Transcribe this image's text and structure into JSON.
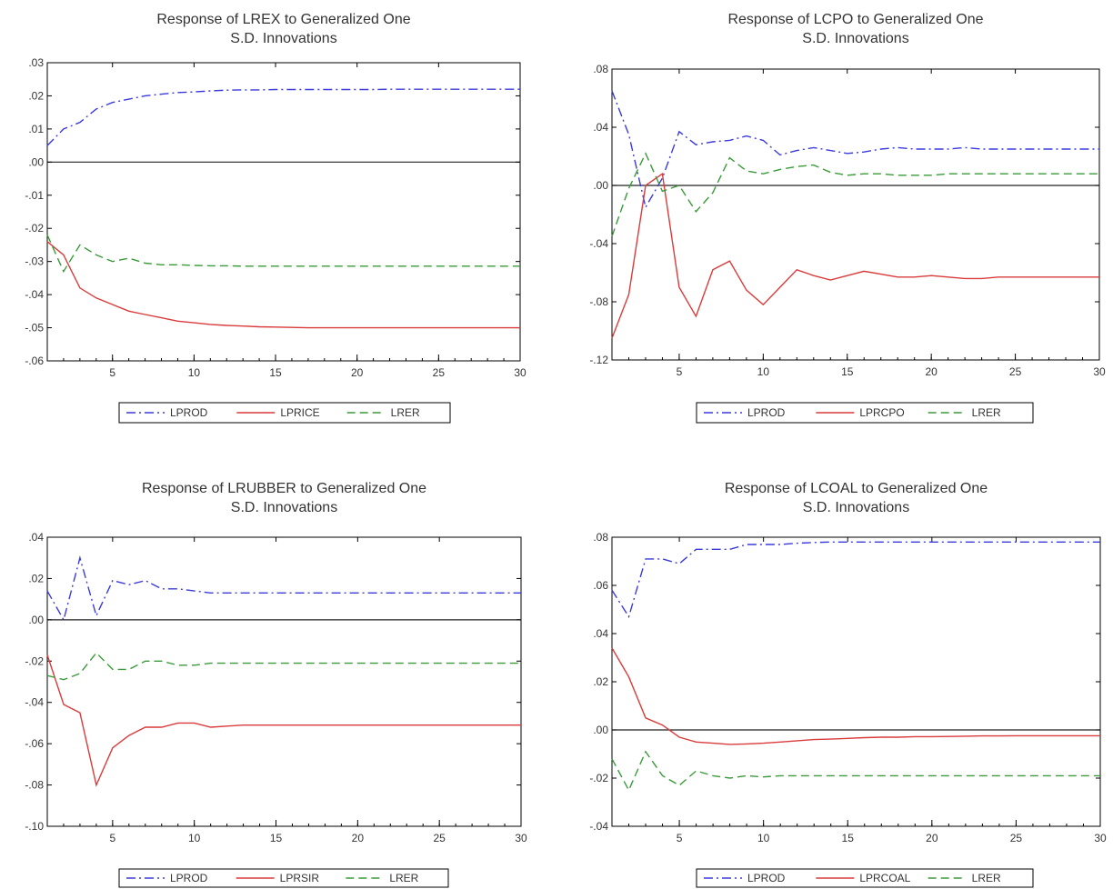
{
  "chart_data": [
    {
      "type": "line",
      "title": "Response of LREX to Generalized One",
      "subtitle": "S.D. Innovations",
      "xlabel": "",
      "ylabel": "",
      "xlim": [
        1,
        30
      ],
      "ylim": [
        -0.06,
        0.03
      ],
      "x_ticks": [
        5,
        10,
        15,
        20,
        25,
        30
      ],
      "y_ticks": [
        ".03",
        ".02",
        ".01",
        ".00",
        "-.01",
        "-.02",
        "-.03",
        "-.04",
        "-.05",
        "-.06"
      ],
      "x": [
        1,
        2,
        3,
        4,
        5,
        6,
        7,
        8,
        9,
        10,
        11,
        12,
        13,
        14,
        15,
        16,
        17,
        18,
        19,
        20,
        21,
        22,
        23,
        24,
        25,
        26,
        27,
        28,
        29,
        30
      ],
      "legend_position": "bottom-center",
      "grid": false,
      "zero_line": true,
      "series": [
        {
          "name": "LPROD",
          "style": "dashdot",
          "color": "#3b3bd9",
          "values": [
            0.005,
            0.01,
            0.012,
            0.016,
            0.018,
            0.019,
            0.02,
            0.0205,
            0.021,
            0.0212,
            0.0215,
            0.0217,
            0.0218,
            0.0218,
            0.0219,
            0.0219,
            0.0219,
            0.0219,
            0.0219,
            0.0219,
            0.0219,
            0.022,
            0.022,
            0.022,
            0.022,
            0.022,
            0.022,
            0.022,
            0.022,
            0.022
          ]
        },
        {
          "name": "LPRICE",
          "style": "solid",
          "color": "#d93b3b",
          "values": [
            -0.024,
            -0.028,
            -0.038,
            -0.041,
            -0.043,
            -0.045,
            -0.046,
            -0.047,
            -0.048,
            -0.0485,
            -0.049,
            -0.0493,
            -0.0495,
            -0.0497,
            -0.0498,
            -0.0499,
            -0.05,
            -0.05,
            -0.05,
            -0.05,
            -0.05,
            -0.05,
            -0.05,
            -0.05,
            -0.05,
            -0.05,
            -0.05,
            -0.05,
            -0.05,
            -0.05
          ]
        },
        {
          "name": "LRER",
          "style": "dashed",
          "color": "#3a9a3a",
          "values": [
            -0.022,
            -0.033,
            -0.025,
            -0.028,
            -0.03,
            -0.029,
            -0.0305,
            -0.031,
            -0.031,
            -0.0312,
            -0.0313,
            -0.0313,
            -0.0314,
            -0.0314,
            -0.0314,
            -0.0314,
            -0.0314,
            -0.0314,
            -0.0314,
            -0.0314,
            -0.0314,
            -0.0314,
            -0.0314,
            -0.0314,
            -0.0314,
            -0.0314,
            -0.0314,
            -0.0314,
            -0.0314,
            -0.0314
          ]
        }
      ]
    },
    {
      "type": "line",
      "title": "Response of LCPO to Generalized One",
      "subtitle": "S.D. Innovations",
      "xlabel": "",
      "ylabel": "",
      "xlim": [
        1,
        30
      ],
      "ylim": [
        -0.12,
        0.08
      ],
      "x_ticks": [
        5,
        10,
        15,
        20,
        25,
        30
      ],
      "y_ticks": [
        ".08",
        ".04",
        ".00",
        "-.04",
        "-.08",
        "-.12"
      ],
      "x": [
        1,
        2,
        3,
        4,
        5,
        6,
        7,
        8,
        9,
        10,
        11,
        12,
        13,
        14,
        15,
        16,
        17,
        18,
        19,
        20,
        21,
        22,
        23,
        24,
        25,
        26,
        27,
        28,
        29,
        30
      ],
      "legend_position": "bottom-center",
      "grid": false,
      "zero_line": true,
      "series": [
        {
          "name": "LPROD",
          "style": "dashdot",
          "color": "#3b3bd9",
          "values": [
            0.065,
            0.035,
            -0.015,
            0.005,
            0.037,
            0.028,
            0.03,
            0.031,
            0.034,
            0.031,
            0.021,
            0.024,
            0.026,
            0.024,
            0.022,
            0.023,
            0.025,
            0.026,
            0.025,
            0.025,
            0.025,
            0.026,
            0.025,
            0.025,
            0.025,
            0.025,
            0.025,
            0.025,
            0.025,
            0.025
          ]
        },
        {
          "name": "LPRCPO",
          "style": "solid",
          "color": "#d93b3b",
          "values": [
            -0.105,
            -0.075,
            0.0,
            0.008,
            -0.07,
            -0.09,
            -0.058,
            -0.052,
            -0.072,
            -0.082,
            -0.07,
            -0.058,
            -0.062,
            -0.065,
            -0.062,
            -0.059,
            -0.061,
            -0.063,
            -0.063,
            -0.062,
            -0.063,
            -0.064,
            -0.064,
            -0.063,
            -0.063,
            -0.063,
            -0.063,
            -0.063,
            -0.063,
            -0.063
          ]
        },
        {
          "name": "LRER",
          "style": "dashed",
          "color": "#3a9a3a",
          "values": [
            -0.035,
            -0.002,
            0.022,
            -0.004,
            0.0,
            -0.018,
            -0.005,
            0.019,
            0.01,
            0.008,
            0.011,
            0.013,
            0.014,
            0.009,
            0.007,
            0.008,
            0.008,
            0.007,
            0.007,
            0.007,
            0.008,
            0.008,
            0.008,
            0.008,
            0.008,
            0.008,
            0.008,
            0.008,
            0.008,
            0.008
          ]
        }
      ]
    },
    {
      "type": "line",
      "title": "Response of LRUBBER to Generalized One",
      "subtitle": "S.D. Innovations",
      "xlabel": "",
      "ylabel": "",
      "xlim": [
        1,
        30
      ],
      "ylim": [
        -0.1,
        0.04
      ],
      "x_ticks": [
        5,
        10,
        15,
        20,
        25,
        30
      ],
      "y_ticks": [
        ".04",
        ".02",
        ".00",
        "-.02",
        "-.04",
        "-.06",
        "-.08",
        "-.10"
      ],
      "x": [
        1,
        2,
        3,
        4,
        5,
        6,
        7,
        8,
        9,
        10,
        11,
        12,
        13,
        14,
        15,
        16,
        17,
        18,
        19,
        20,
        21,
        22,
        23,
        24,
        25,
        26,
        27,
        28,
        29,
        30
      ],
      "legend_position": "bottom-center",
      "grid": false,
      "zero_line": true,
      "series": [
        {
          "name": "LPROD",
          "style": "dashdot",
          "color": "#3b3bd9",
          "values": [
            0.014,
            0.0,
            0.03,
            0.002,
            0.019,
            0.017,
            0.019,
            0.015,
            0.015,
            0.014,
            0.013,
            0.013,
            0.013,
            0.013,
            0.013,
            0.013,
            0.013,
            0.013,
            0.013,
            0.013,
            0.013,
            0.013,
            0.013,
            0.013,
            0.013,
            0.013,
            0.013,
            0.013,
            0.013,
            0.013
          ]
        },
        {
          "name": "LPRSIR",
          "style": "solid",
          "color": "#d93b3b",
          "values": [
            -0.017,
            -0.041,
            -0.045,
            -0.08,
            -0.062,
            -0.056,
            -0.052,
            -0.052,
            -0.05,
            -0.05,
            -0.052,
            -0.0515,
            -0.051,
            -0.051,
            -0.051,
            -0.051,
            -0.051,
            -0.051,
            -0.051,
            -0.051,
            -0.051,
            -0.051,
            -0.051,
            -0.051,
            -0.051,
            -0.051,
            -0.051,
            -0.051,
            -0.051,
            -0.051
          ]
        },
        {
          "name": "LRER",
          "style": "dashed",
          "color": "#3a9a3a",
          "values": [
            -0.027,
            -0.029,
            -0.026,
            -0.016,
            -0.024,
            -0.024,
            -0.02,
            -0.02,
            -0.022,
            -0.022,
            -0.021,
            -0.021,
            -0.021,
            -0.021,
            -0.021,
            -0.021,
            -0.021,
            -0.021,
            -0.021,
            -0.021,
            -0.021,
            -0.021,
            -0.021,
            -0.021,
            -0.021,
            -0.021,
            -0.021,
            -0.021,
            -0.021,
            -0.021
          ]
        }
      ]
    },
    {
      "type": "line",
      "title": "Response of LCOAL to Generalized One",
      "subtitle": "S.D. Innovations",
      "xlabel": "",
      "ylabel": "",
      "xlim": [
        1,
        30
      ],
      "ylim": [
        -0.04,
        0.08
      ],
      "x_ticks": [
        5,
        10,
        15,
        20,
        25,
        30
      ],
      "y_ticks": [
        ".08",
        ".06",
        ".04",
        ".02",
        ".00",
        "-.02",
        "-.04"
      ],
      "x": [
        1,
        2,
        3,
        4,
        5,
        6,
        7,
        8,
        9,
        10,
        11,
        12,
        13,
        14,
        15,
        16,
        17,
        18,
        19,
        20,
        21,
        22,
        23,
        24,
        25,
        26,
        27,
        28,
        29,
        30
      ],
      "legend_position": "bottom-center",
      "grid": false,
      "zero_line": true,
      "series": [
        {
          "name": "LPROD",
          "style": "dashdot",
          "color": "#3b3bd9",
          "values": [
            0.058,
            0.047,
            0.071,
            0.071,
            0.069,
            0.075,
            0.075,
            0.075,
            0.077,
            0.077,
            0.077,
            0.0775,
            0.0778,
            0.078,
            0.078,
            0.078,
            0.078,
            0.078,
            0.078,
            0.078,
            0.078,
            0.078,
            0.078,
            0.078,
            0.078,
            0.078,
            0.078,
            0.078,
            0.078,
            0.078
          ]
        },
        {
          "name": "LPRCOAL",
          "style": "solid",
          "color": "#d93b3b",
          "values": [
            0.034,
            0.022,
            0.005,
            0.002,
            -0.003,
            -0.005,
            -0.0055,
            -0.006,
            -0.0058,
            -0.0055,
            -0.005,
            -0.0045,
            -0.004,
            -0.0038,
            -0.0035,
            -0.0032,
            -0.003,
            -0.003,
            -0.0028,
            -0.0028,
            -0.0027,
            -0.0026,
            -0.0025,
            -0.0025,
            -0.0024,
            -0.0024,
            -0.0024,
            -0.0024,
            -0.0024,
            -0.0024
          ]
        },
        {
          "name": "LRER",
          "style": "dashed",
          "color": "#3a9a3a",
          "values": [
            -0.012,
            -0.025,
            -0.009,
            -0.019,
            -0.023,
            -0.017,
            -0.019,
            -0.02,
            -0.019,
            -0.0195,
            -0.019,
            -0.019,
            -0.019,
            -0.019,
            -0.019,
            -0.019,
            -0.019,
            -0.019,
            -0.019,
            -0.019,
            -0.019,
            -0.019,
            -0.019,
            -0.019,
            -0.019,
            -0.019,
            -0.019,
            -0.019,
            -0.019,
            -0.019
          ]
        }
      ]
    }
  ]
}
